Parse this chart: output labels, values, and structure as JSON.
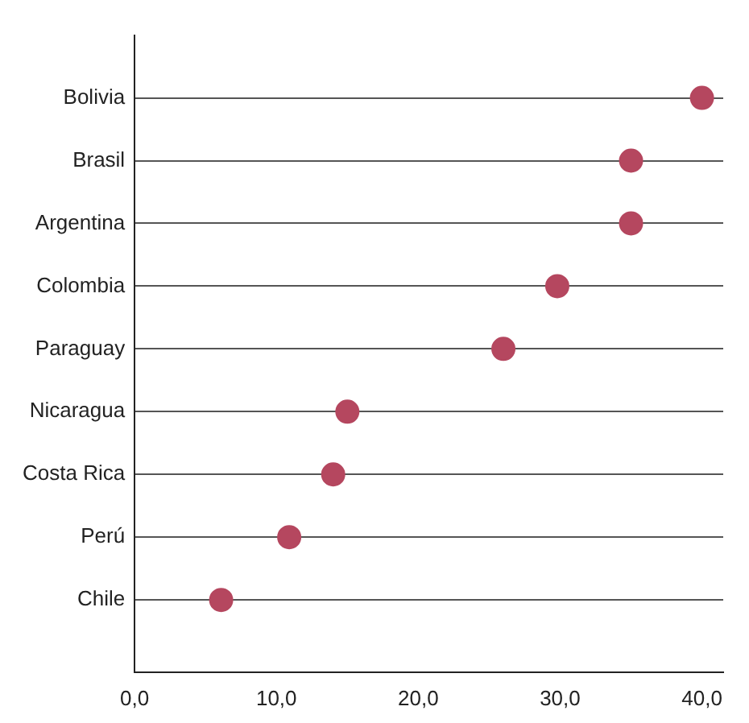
{
  "chart_data": {
    "type": "scatter",
    "orientation": "horizontal",
    "categories": [
      "Bolivia",
      "Brasil",
      "Argentina",
      "Colombia",
      "Paraguay",
      "Nicaragua",
      "Costa Rica",
      "Perú",
      "Chile"
    ],
    "values": [
      40,
      35,
      35,
      29.8,
      26,
      15,
      14,
      10.9,
      6.1
    ],
    "color": "#b5475f",
    "marker": "circle",
    "grid": "y",
    "legend": false,
    "xlim": [
      0,
      41.5
    ],
    "xticks": [
      {
        "value": 0,
        "label": "0,0"
      },
      {
        "value": 10,
        "label": "10,0"
      },
      {
        "value": 20,
        "label": "20,0"
      },
      {
        "value": 30,
        "label": "30,0"
      },
      {
        "value": 40,
        "label": "40,0"
      }
    ]
  }
}
